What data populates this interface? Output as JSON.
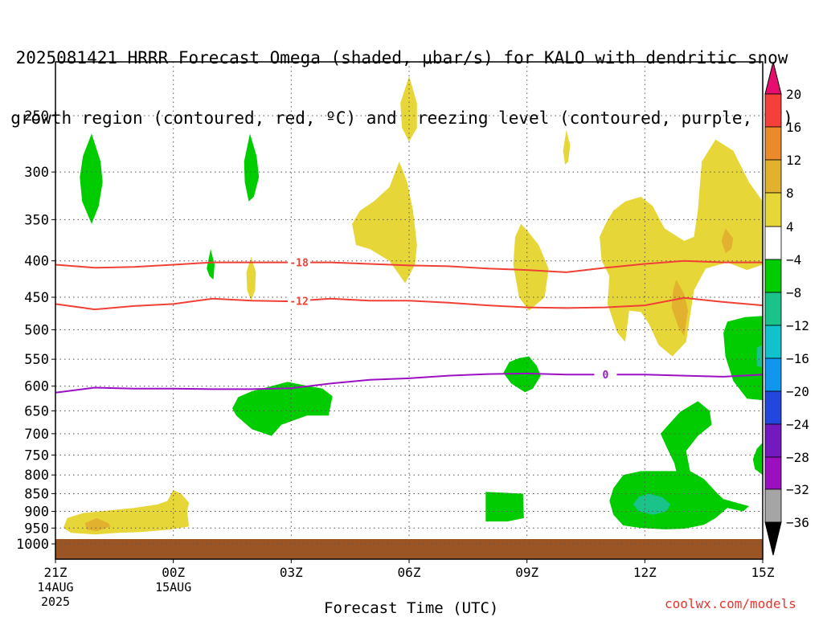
{
  "title": {
    "line1": "2025081421 HRRR Forecast Omega (shaded, μbar/s) for KALO with dendritic snow",
    "line2": "growth region (contoured, red, ºC) and freezing level (contoured, purple, ºC)"
  },
  "credit": "coolwx.com/models",
  "chart_data": {
    "type": "heatmap",
    "title": "2025081421 HRRR Forecast Omega (shaded, μbar/s) for KALO with dendritic snow growth region (contoured, red, ºC) and freezing level (contoured, purple, ºC)",
    "xlabel": "Forecast Time (UTC)",
    "ylabel": "",
    "x_ticks": [
      {
        "hour": 0,
        "label": "21Z",
        "sub1": "14AUG",
        "sub2": "2025"
      },
      {
        "hour": 3,
        "label": "00Z",
        "sub1": "15AUG",
        "sub2": ""
      },
      {
        "hour": 6,
        "label": "03Z",
        "sub1": "",
        "sub2": ""
      },
      {
        "hour": 9,
        "label": "06Z",
        "sub1": "",
        "sub2": ""
      },
      {
        "hour": 12,
        "label": "09Z",
        "sub1": "",
        "sub2": ""
      },
      {
        "hour": 15,
        "label": "12Z",
        "sub1": "",
        "sub2": ""
      },
      {
        "hour": 18,
        "label": "15Z",
        "sub1": "",
        "sub2": ""
      }
    ],
    "xlim_hours": [
      0,
      18
    ],
    "y_scale": "log",
    "y_ticks": [
      250,
      300,
      350,
      400,
      450,
      500,
      550,
      600,
      650,
      700,
      750,
      800,
      850,
      900,
      950,
      1000
    ],
    "ylim": [
      200,
      1050
    ],
    "grid": true,
    "surface_fill_color": "#9b5524",
    "colorbar": {
      "labels": [
        "20",
        "16",
        "12",
        "8",
        "4",
        "−4",
        "−8",
        "−12",
        "−16",
        "−20",
        "−24",
        "−28",
        "−32",
        "−36"
      ],
      "colors": [
        "#e50e6e",
        "#f43f3a",
        "#eb8a2b",
        "#e2b22f",
        "#e6d638",
        "#ffffff",
        "#00cc00",
        "#19c38a",
        "#11c2cc",
        "#0f97ee",
        "#2247dd",
        "#7418bf",
        "#9b0fbf",
        "#a5a5a5",
        "#000000"
      ]
    },
    "contours": [
      {
        "name": "-18",
        "color": "#f04036",
        "label_hour": 6.2,
        "points": [
          [
            0,
            405
          ],
          [
            1,
            409
          ],
          [
            2,
            408
          ],
          [
            3,
            405
          ],
          [
            4,
            402
          ],
          [
            5,
            402
          ],
          [
            6,
            402
          ],
          [
            7,
            402
          ],
          [
            8,
            404
          ],
          [
            9,
            406
          ],
          [
            10,
            407
          ],
          [
            11,
            410
          ],
          [
            12,
            412
          ],
          [
            13,
            415
          ],
          [
            14,
            409
          ],
          [
            15,
            404
          ],
          [
            16,
            400
          ],
          [
            17,
            402
          ],
          [
            18,
            402
          ]
        ]
      },
      {
        "name": "-12",
        "color": "#f04036",
        "label_hour": 6.2,
        "points": [
          [
            0,
            460
          ],
          [
            1,
            468
          ],
          [
            2,
            463
          ],
          [
            3,
            460
          ],
          [
            4,
            452
          ],
          [
            5,
            455
          ],
          [
            6,
            456
          ],
          [
            7,
            452
          ],
          [
            8,
            455
          ],
          [
            9,
            455
          ],
          [
            10,
            458
          ],
          [
            11,
            462
          ],
          [
            12,
            465
          ],
          [
            13,
            466
          ],
          [
            14,
            465
          ],
          [
            15,
            462
          ],
          [
            16,
            451
          ],
          [
            17,
            457
          ],
          [
            18,
            462
          ]
        ]
      },
      {
        "name": "0",
        "color": "#9c10c4",
        "label_hour": 14.0,
        "points": [
          [
            0,
            613
          ],
          [
            1,
            603
          ],
          [
            2,
            605
          ],
          [
            3,
            605
          ],
          [
            4,
            606
          ],
          [
            5,
            606
          ],
          [
            6,
            604
          ],
          [
            7,
            595
          ],
          [
            8,
            588
          ],
          [
            9,
            585
          ],
          [
            10,
            580
          ],
          [
            11,
            577
          ],
          [
            12,
            576
          ],
          [
            13,
            578
          ],
          [
            14,
            578
          ],
          [
            15,
            578
          ],
          [
            16,
            580
          ],
          [
            17,
            582
          ],
          [
            18,
            578
          ]
        ]
      }
    ],
    "omega_regions": [
      {
        "value": -5,
        "shape": [
          [
            0.92,
            265
          ],
          [
            1.15,
            290
          ],
          [
            1.2,
            310
          ],
          [
            1.1,
            335
          ],
          [
            0.92,
            355
          ],
          [
            0.68,
            330
          ],
          [
            0.62,
            305
          ],
          [
            0.7,
            285
          ]
        ]
      },
      {
        "value": -5,
        "shape": [
          [
            4.95,
            265
          ],
          [
            5.12,
            285
          ],
          [
            5.18,
            305
          ],
          [
            5.05,
            325
          ],
          [
            4.92,
            330
          ],
          [
            4.82,
            310
          ],
          [
            4.8,
            290
          ]
        ]
      },
      {
        "value": -5,
        "shape": [
          [
            3.95,
            385
          ],
          [
            4.05,
            405
          ],
          [
            4.02,
            425
          ],
          [
            3.92,
            420
          ],
          [
            3.85,
            410
          ]
        ]
      },
      {
        "value": 5,
        "shape": [
          [
            4.98,
            395
          ],
          [
            5.1,
            415
          ],
          [
            5.08,
            440
          ],
          [
            4.98,
            455
          ],
          [
            4.88,
            440
          ],
          [
            4.86,
            415
          ]
        ]
      },
      {
        "value": 5,
        "shape": [
          [
            9.0,
            220
          ],
          [
            9.2,
            240
          ],
          [
            9.2,
            260
          ],
          [
            9.0,
            272
          ],
          [
            8.82,
            260
          ],
          [
            8.78,
            240
          ]
        ]
      },
      {
        "value": 5,
        "shape": [
          [
            13.0,
            262
          ],
          [
            13.1,
            275
          ],
          [
            13.05,
            290
          ],
          [
            12.97,
            293
          ],
          [
            12.92,
            280
          ]
        ]
      },
      {
        "value": 5,
        "shape": [
          [
            8.75,
            290
          ],
          [
            8.95,
            310
          ],
          [
            9.1,
            340
          ],
          [
            9.2,
            380
          ],
          [
            9.15,
            405
          ],
          [
            8.9,
            430
          ],
          [
            8.5,
            400
          ],
          [
            8.0,
            385
          ],
          [
            7.65,
            380
          ],
          [
            7.55,
            355
          ],
          [
            7.75,
            340
          ],
          [
            8.1,
            330
          ],
          [
            8.5,
            315
          ]
        ]
      },
      {
        "value": 5,
        "shape": [
          [
            11.85,
            355
          ],
          [
            12.05,
            365
          ],
          [
            12.3,
            380
          ],
          [
            12.55,
            410
          ],
          [
            12.45,
            450
          ],
          [
            12.05,
            470
          ],
          [
            11.8,
            450
          ],
          [
            11.65,
            405
          ],
          [
            11.7,
            370
          ]
        ]
      },
      {
        "value": 5,
        "shape": [
          [
            14.2,
            340
          ],
          [
            14.5,
            330
          ],
          [
            14.9,
            325
          ],
          [
            15.2,
            335
          ],
          [
            15.5,
            360
          ],
          [
            16,
            375
          ],
          [
            16.25,
            370
          ],
          [
            16.35,
            340
          ],
          [
            16.45,
            290
          ],
          [
            16.8,
            270
          ],
          [
            17.25,
            280
          ],
          [
            17.65,
            310
          ],
          [
            18,
            330
          ],
          [
            18,
            405
          ],
          [
            17.6,
            412
          ],
          [
            17.1,
            402
          ],
          [
            16.55,
            410
          ],
          [
            16.25,
            440
          ],
          [
            16.05,
            520
          ],
          [
            15.7,
            545
          ],
          [
            15.35,
            525
          ],
          [
            15.1,
            490
          ],
          [
            14.9,
            472
          ],
          [
            14.6,
            470
          ],
          [
            14.5,
            520
          ],
          [
            14.3,
            505
          ],
          [
            14.05,
            460
          ],
          [
            14.1,
            420
          ],
          [
            13.9,
            400
          ],
          [
            13.85,
            370
          ],
          [
            14.0,
            355
          ]
        ]
      },
      {
        "value": 10,
        "shape": [
          [
            15.8,
            425
          ],
          [
            16.0,
            445
          ],
          [
            16.1,
            470
          ],
          [
            16.0,
            510
          ],
          [
            15.85,
            495
          ],
          [
            15.68,
            465
          ],
          [
            15.72,
            440
          ]
        ]
      },
      {
        "value": 10,
        "shape": [
          [
            17.05,
            360
          ],
          [
            17.25,
            372
          ],
          [
            17.2,
            385
          ],
          [
            17.05,
            390
          ],
          [
            16.95,
            375
          ]
        ]
      },
      {
        "value": -5,
        "shape": [
          [
            12.05,
            545
          ],
          [
            12.25,
            562
          ],
          [
            12.35,
            580
          ],
          [
            12.15,
            605
          ],
          [
            11.95,
            612
          ],
          [
            11.6,
            595
          ],
          [
            11.4,
            575
          ],
          [
            11.55,
            555
          ],
          [
            11.8,
            548
          ]
        ]
      },
      {
        "value": -5,
        "shape": [
          [
            6.25,
            597
          ],
          [
            6.8,
            605
          ],
          [
            7.05,
            620
          ],
          [
            6.95,
            660
          ],
          [
            6.4,
            660
          ],
          [
            5.75,
            680
          ],
          [
            5.5,
            705
          ],
          [
            5.0,
            690
          ],
          [
            4.6,
            660
          ],
          [
            4.5,
            645
          ],
          [
            4.65,
            622
          ],
          [
            5.0,
            610
          ],
          [
            5.5,
            600
          ],
          [
            5.9,
            592
          ]
        ]
      },
      {
        "value": -5,
        "shape": [
          [
            17.55,
            480
          ],
          [
            18,
            478
          ],
          [
            18,
            628
          ],
          [
            17.6,
            625
          ],
          [
            17.25,
            590
          ],
          [
            17.05,
            545
          ],
          [
            17.0,
            505
          ],
          [
            17.1,
            487
          ]
        ]
      },
      {
        "value": -8,
        "shape": [
          [
            18,
            505
          ],
          [
            18,
            610
          ],
          [
            17.7,
            605
          ],
          [
            17.5,
            580
          ],
          [
            17.5,
            545
          ],
          [
            17.7,
            515
          ]
        ]
      },
      {
        "value": -10,
        "shape": [
          [
            18,
            525
          ],
          [
            18,
            565
          ],
          [
            17.85,
            562
          ],
          [
            17.85,
            530
          ]
        ]
      },
      {
        "value": -5,
        "shape": [
          [
            16.35,
            630
          ],
          [
            16.65,
            650
          ],
          [
            16.7,
            680
          ],
          [
            16.35,
            705
          ],
          [
            16.05,
            740
          ],
          [
            16.15,
            790
          ],
          [
            16.5,
            810
          ],
          [
            16.85,
            850
          ],
          [
            17.0,
            865
          ],
          [
            17.65,
            885
          ],
          [
            17.5,
            900
          ],
          [
            17.1,
            890
          ],
          [
            16.8,
            920
          ],
          [
            16.5,
            940
          ],
          [
            16.0,
            952
          ],
          [
            15.5,
            954
          ],
          [
            14.9,
            950
          ],
          [
            14.45,
            942
          ],
          [
            14.2,
            910
          ],
          [
            14.1,
            870
          ],
          [
            14.2,
            835
          ],
          [
            14.45,
            800
          ],
          [
            14.9,
            790
          ],
          [
            15.3,
            790
          ],
          [
            15.65,
            790
          ],
          [
            15.8,
            790
          ],
          [
            15.75,
            770
          ],
          [
            15.55,
            730
          ],
          [
            15.4,
            700
          ],
          [
            15.6,
            680
          ],
          [
            15.9,
            652
          ]
        ]
      },
      {
        "value": -10,
        "shape": [
          [
            15.1,
            850
          ],
          [
            15.45,
            860
          ],
          [
            15.65,
            880
          ],
          [
            15.55,
            900
          ],
          [
            15.2,
            910
          ],
          [
            14.85,
            900
          ],
          [
            14.7,
            880
          ],
          [
            14.85,
            858
          ]
        ]
      },
      {
        "value": -5,
        "shape": [
          [
            18,
            720
          ],
          [
            18,
            800
          ],
          [
            17.8,
            785
          ],
          [
            17.75,
            760
          ],
          [
            17.85,
            735
          ]
        ]
      },
      {
        "value": -5,
        "shape": [
          [
            10.95,
            845
          ],
          [
            11.9,
            850
          ],
          [
            11.92,
            920
          ],
          [
            11.5,
            930
          ],
          [
            10.95,
            930
          ]
        ]
      },
      {
        "value": 5,
        "shape": [
          [
            3.0,
            840
          ],
          [
            3.2,
            850
          ],
          [
            3.4,
            875
          ],
          [
            3.35,
            900
          ],
          [
            3.4,
            945
          ],
          [
            2.9,
            955
          ],
          [
            2.2,
            962
          ],
          [
            1.6,
            965
          ],
          [
            1.0,
            970
          ],
          [
            0.4,
            965
          ],
          [
            0.2,
            950
          ],
          [
            0.3,
            920
          ],
          [
            0.7,
            905
          ],
          [
            1.3,
            898
          ],
          [
            2.0,
            890
          ],
          [
            2.6,
            880
          ],
          [
            2.85,
            870
          ]
        ]
      },
      {
        "value": 10,
        "shape": [
          [
            1.05,
            920
          ],
          [
            1.35,
            935
          ],
          [
            1.4,
            945
          ],
          [
            1.05,
            960
          ],
          [
            0.8,
            955
          ],
          [
            0.75,
            935
          ]
        ]
      }
    ]
  }
}
